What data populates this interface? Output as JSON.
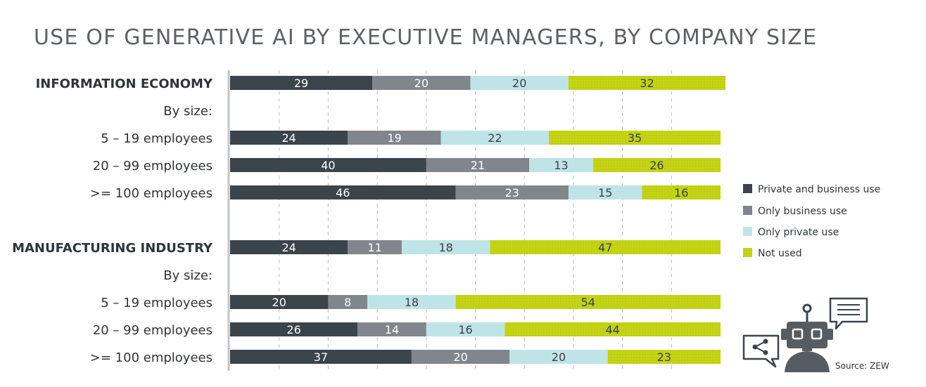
{
  "chart_data": {
    "type": "bar",
    "orientation": "horizontal",
    "stacked": true,
    "title": "USE OF GENERATIVE AI BY EXECUTIVE MANAGERS, BY COMPANY SIZE",
    "xlim": [
      0,
      100
    ],
    "grid": true,
    "legend_position": "right",
    "rows": [
      {
        "label": "INFORMATION ECONOMY",
        "kind": "group",
        "values": [
          29,
          20,
          20,
          32
        ]
      },
      {
        "label": "By size:",
        "kind": "subhead",
        "values": null
      },
      {
        "label": "5 – 19 employees",
        "kind": "row",
        "values": [
          24,
          19,
          22,
          35
        ]
      },
      {
        "label": "20 – 99 employees",
        "kind": "row",
        "values": [
          40,
          21,
          13,
          26
        ]
      },
      {
        "label": ">= 100 employees",
        "kind": "row",
        "values": [
          46,
          23,
          15,
          16
        ]
      },
      {
        "label": "MANUFACTURING INDUSTRY",
        "kind": "group",
        "values": [
          24,
          11,
          18,
          47
        ]
      },
      {
        "label": "By size:",
        "kind": "subhead",
        "values": null
      },
      {
        "label": "5 – 19 employees",
        "kind": "row",
        "values": [
          20,
          8,
          18,
          54
        ]
      },
      {
        "label": "20 – 99 employees",
        "kind": "row",
        "values": [
          26,
          14,
          16,
          44
        ]
      },
      {
        "label": ">= 100 employees",
        "kind": "row",
        "values": [
          37,
          20,
          20,
          23
        ]
      }
    ],
    "series": [
      {
        "name": "Private and business use",
        "color": "#3b444a"
      },
      {
        "name": "Only business use",
        "color": "#80868c"
      },
      {
        "name": "Only private use",
        "color": "#bfe4e7"
      },
      {
        "name": "Not used",
        "color": "#c4d414"
      }
    ]
  },
  "source": "Source: ZEW",
  "icons": [
    "robot-icon",
    "share-chat-icon",
    "speech-bubble-icon"
  ]
}
